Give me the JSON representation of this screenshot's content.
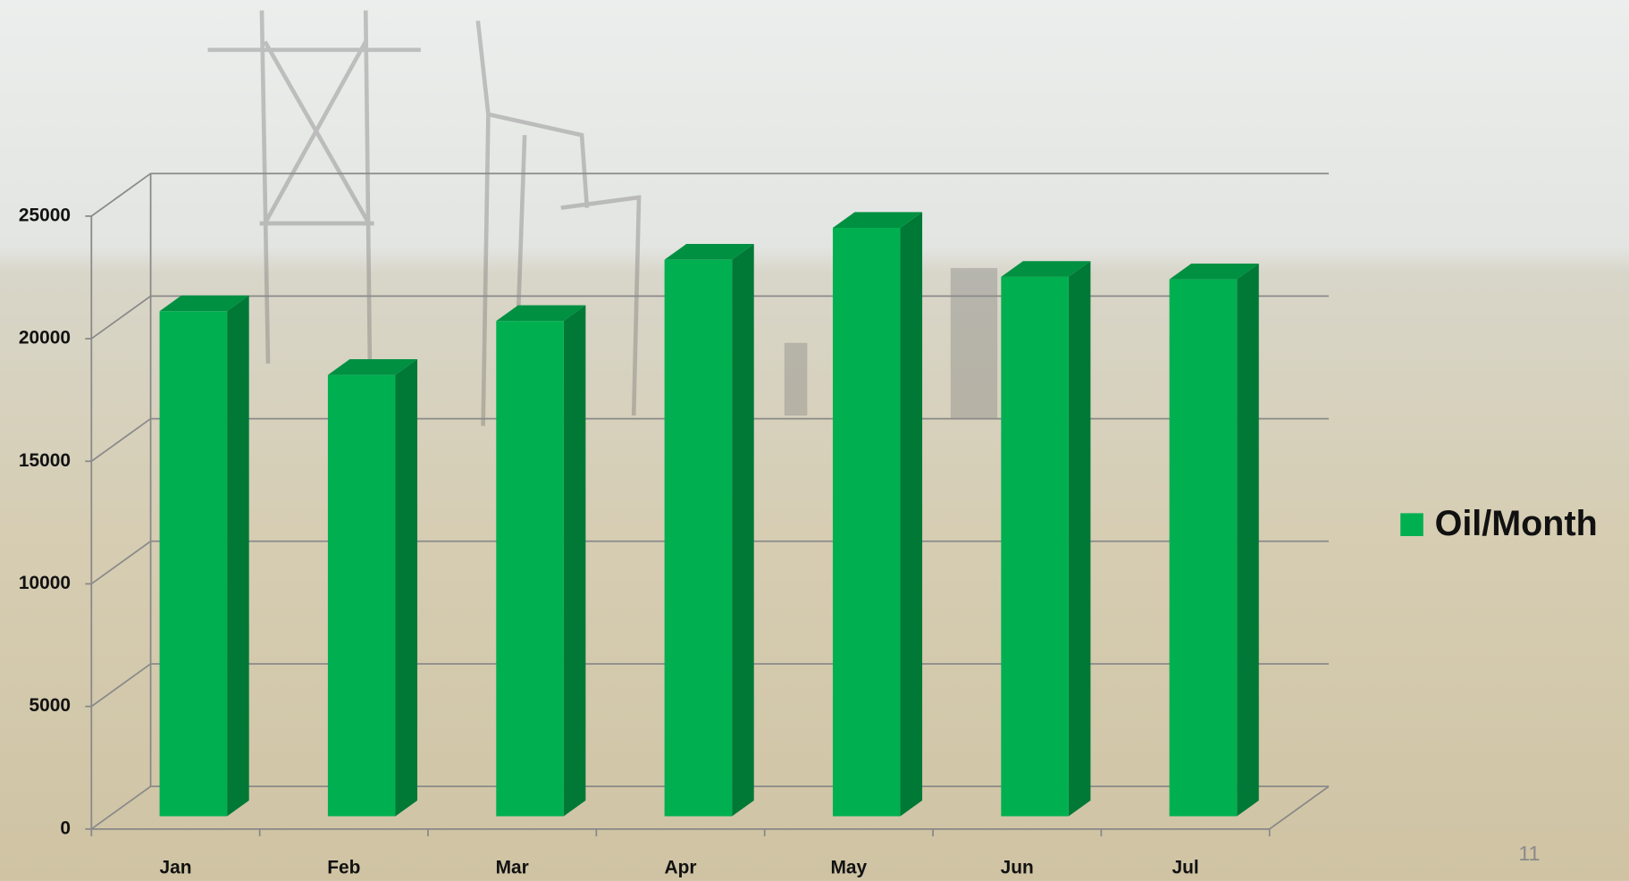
{
  "chart_data": {
    "type": "bar",
    "categories": [
      "Jan",
      "Feb",
      "Mar",
      "Apr",
      "May",
      "Jun",
      "Jul"
    ],
    "series": [
      {
        "name": "Oil/Month",
        "color": "#00b050",
        "values": [
          20600,
          18000,
          20200,
          22700,
          24000,
          22000,
          21900
        ]
      }
    ],
    "ylim": [
      0,
      25000
    ],
    "yticks": [
      0,
      5000,
      10000,
      15000,
      20000,
      25000
    ],
    "grid": true,
    "legend": "right"
  },
  "page_number": "11"
}
